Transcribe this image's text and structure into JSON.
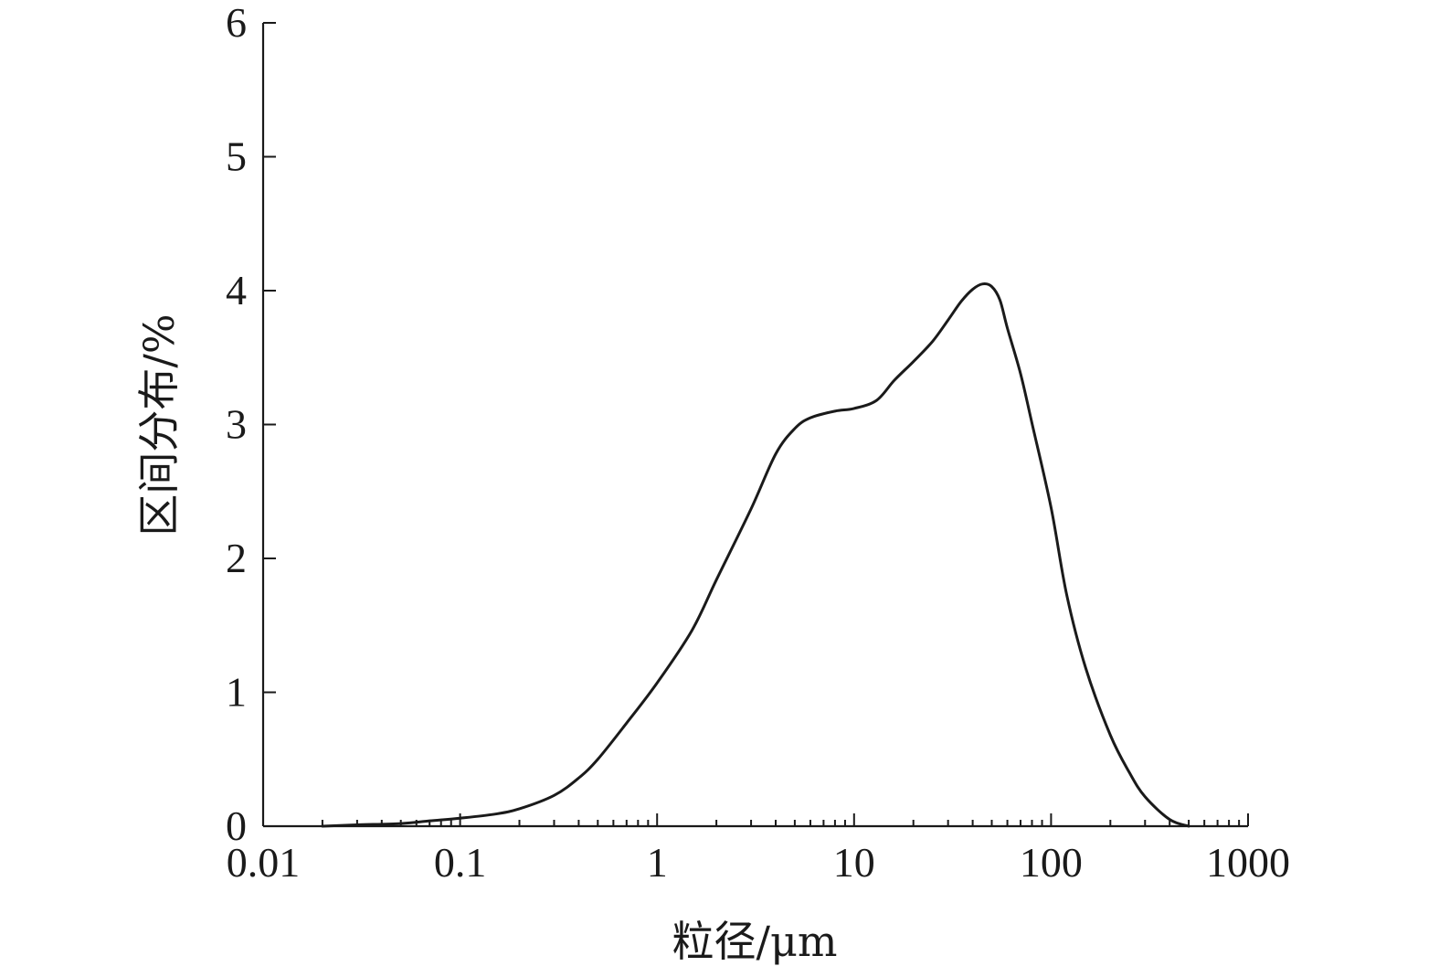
{
  "chart_data": {
    "type": "line",
    "title": "",
    "xlabel": "粒径/μm",
    "ylabel": "区间分布/%",
    "x_scale": "log",
    "xlim": [
      0.01,
      1000
    ],
    "ylim": [
      0,
      6
    ],
    "x_ticks": [
      0.01,
      0.1,
      1,
      10,
      100,
      1000
    ],
    "x_tick_labels": [
      "0.01",
      "0.1",
      "1",
      "10",
      "100",
      "1000"
    ],
    "y_ticks": [
      0,
      1,
      2,
      3,
      4,
      5,
      6
    ],
    "y_tick_labels": [
      "0",
      "1",
      "2",
      "3",
      "4",
      "5",
      "6"
    ],
    "grid": false,
    "legend": "none",
    "line_color": "#1a1a1a",
    "series": [
      {
        "x": [
          0.02,
          0.03,
          0.05,
          0.07,
          0.1,
          0.15,
          0.2,
          0.3,
          0.4,
          0.5,
          0.7,
          1.0,
          1.5,
          2.0,
          3.0,
          4.0,
          5.0,
          6.0,
          8.0,
          10,
          13,
          16,
          20,
          25,
          30,
          35,
          40,
          45,
          50,
          55,
          60,
          70,
          80,
          100,
          120,
          150,
          200,
          250,
          300,
          400,
          500
        ],
        "y": [
          0.0,
          0.01,
          0.02,
          0.04,
          0.06,
          0.09,
          0.13,
          0.23,
          0.36,
          0.5,
          0.77,
          1.07,
          1.46,
          1.84,
          2.37,
          2.78,
          2.97,
          3.05,
          3.1,
          3.12,
          3.18,
          3.33,
          3.47,
          3.62,
          3.78,
          3.92,
          4.01,
          4.05,
          4.03,
          3.93,
          3.72,
          3.38,
          3.01,
          2.38,
          1.73,
          1.18,
          0.68,
          0.4,
          0.22,
          0.05,
          0.0
        ]
      }
    ]
  }
}
